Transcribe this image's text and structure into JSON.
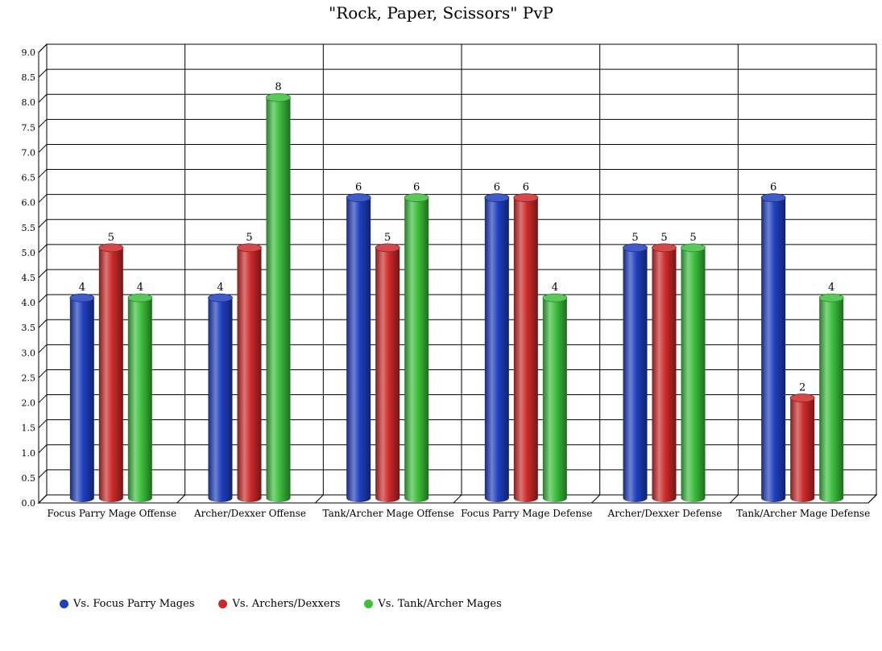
{
  "chart_data": {
    "type": "bar",
    "title": "\"Rock, Paper, Scissors\" PvP",
    "xlabel": "",
    "ylabel": "",
    "ylim": [
      0,
      9
    ],
    "ytick_step": 0.5,
    "yticks": [
      "0.0",
      "0.5",
      "1.0",
      "1.5",
      "2.0",
      "2.5",
      "3.0",
      "3.5",
      "4.0",
      "4.5",
      "5.0",
      "5.5",
      "6.0",
      "6.5",
      "7.0",
      "7.5",
      "8.0",
      "8.5",
      "9.0"
    ],
    "grid": true,
    "legend_position": "bottom-left",
    "categories": [
      "Focus Parry Mage Offense",
      "Archer/Dexxer Offense",
      "Tank/Archer Mage Offense",
      "Focus Parry Mage Defense",
      "Archer/Dexxer Defense",
      "Tank/Archer Mage Defense"
    ],
    "series": [
      {
        "name": "Vs. Focus Parry Mages",
        "color": "#1f3fbf",
        "values": [
          4,
          4,
          6,
          6,
          5,
          6
        ]
      },
      {
        "name": "Vs. Archers/Dexxers",
        "color": "#cc2a2a",
        "values": [
          5,
          5,
          5,
          6,
          5,
          2
        ]
      },
      {
        "name": "Vs. Tank/Archer Mages",
        "color": "#3cbf3c",
        "values": [
          4,
          8,
          6,
          4,
          5,
          4
        ]
      }
    ]
  }
}
